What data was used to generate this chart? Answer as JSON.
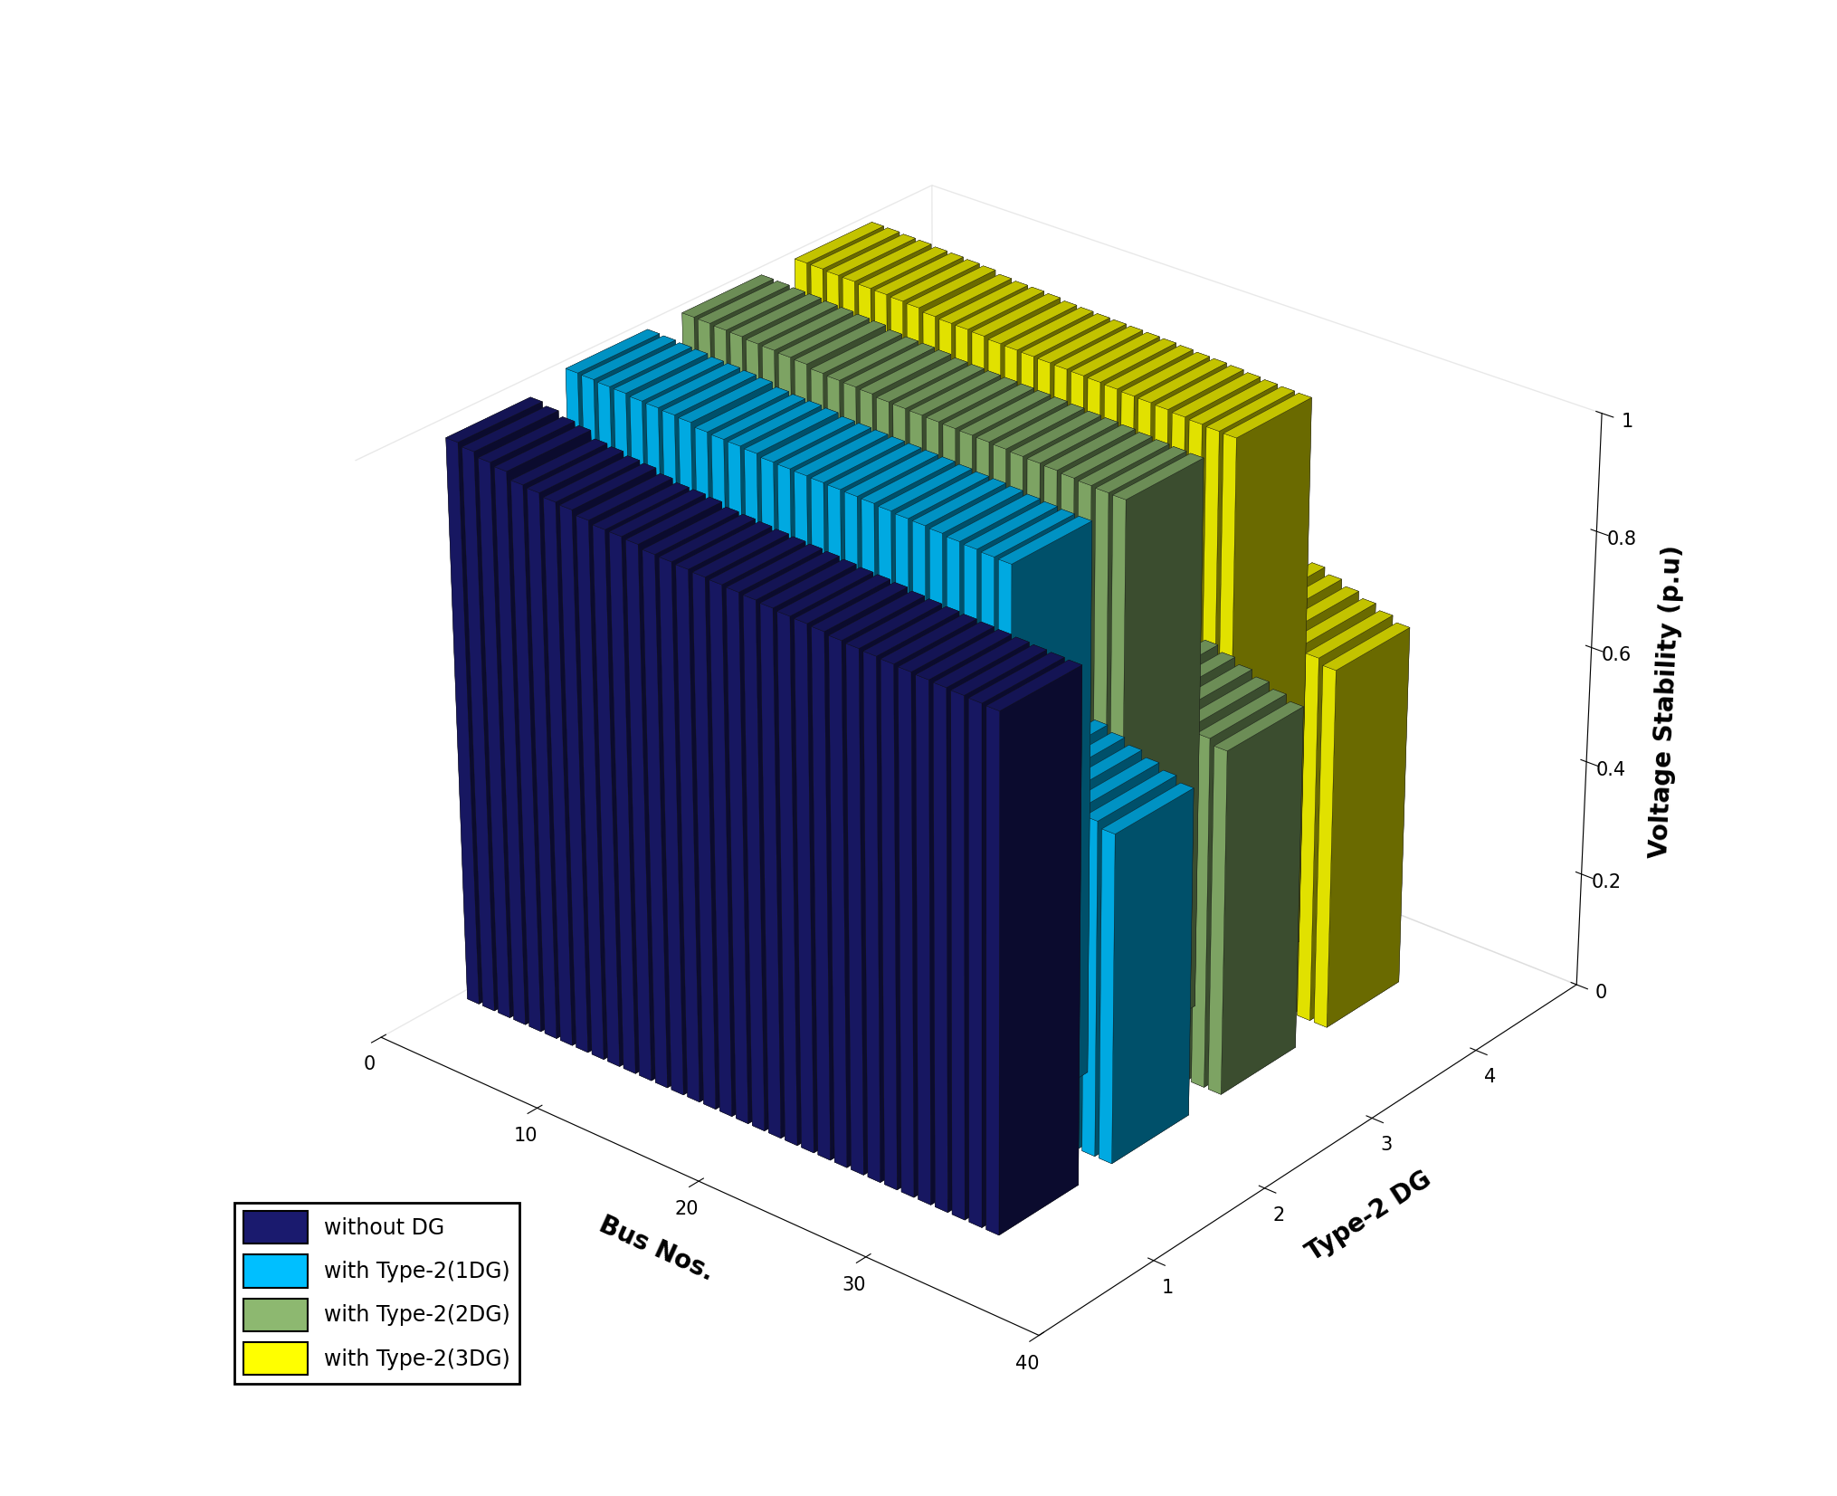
{
  "title": "",
  "xlabel": "Bus Nos.",
  "ylabel": "Type-2 DG",
  "zlabel": "Voltage Stability (p.u)",
  "n_buses": 33,
  "n_dg_types": 4,
  "dg_labels": [
    "without DG",
    "with Type-2(1DG)",
    "with Type-2(2DG)",
    "with Type-2(3DG)"
  ],
  "colors": [
    "#1a1a6e",
    "#00bfff",
    "#8db870",
    "#ffff00"
  ],
  "edge_color": "#111111",
  "voltage_without_dg": [
    0.9805,
    0.9754,
    0.9677,
    0.963,
    0.9509,
    0.9481,
    0.9432,
    0.9409,
    0.934,
    0.9292,
    0.9284,
    0.9261,
    0.92,
    0.9185,
    0.9168,
    0.9148,
    0.9131,
    0.9115,
    0.9098,
    0.9073,
    0.9048,
    0.9037,
    0.9017,
    0.898,
    0.896,
    0.8944,
    0.8928,
    0.8911,
    0.8895,
    0.888,
    0.8865,
    0.8851,
    0.8838
  ],
  "voltage_1dg": [
    1.0,
    0.999,
    0.997,
    0.996,
    0.993,
    0.992,
    0.99,
    0.988,
    0.982,
    0.98,
    0.979,
    0.977,
    0.973,
    0.972,
    0.971,
    0.97,
    0.969,
    0.968,
    0.967,
    0.965,
    0.963,
    0.962,
    0.96,
    0.957,
    0.955,
    0.953,
    0.952,
    0.62,
    0.61,
    0.6,
    0.59,
    0.58,
    0.57
  ],
  "voltage_2dg": [
    1.0,
    0.9992,
    0.9975,
    0.9965,
    0.994,
    0.993,
    0.991,
    0.9895,
    0.984,
    0.982,
    0.981,
    0.9795,
    0.976,
    0.975,
    0.974,
    0.973,
    0.972,
    0.971,
    0.97,
    0.9685,
    0.9665,
    0.9655,
    0.964,
    0.9615,
    0.9595,
    0.958,
    0.957,
    0.65,
    0.64,
    0.63,
    0.62,
    0.61,
    0.6
  ],
  "voltage_3dg": [
    1.0,
    0.9995,
    0.998,
    0.9972,
    0.995,
    0.9942,
    0.9925,
    0.991,
    0.986,
    0.984,
    0.9835,
    0.982,
    0.979,
    0.978,
    0.977,
    0.9762,
    0.9753,
    0.9744,
    0.9735,
    0.972,
    0.9702,
    0.9693,
    0.9678,
    0.9655,
    0.9635,
    0.962,
    0.961,
    0.68,
    0.67,
    0.66,
    0.65,
    0.64,
    0.63
  ],
  "background_color": "#ffffff",
  "elev": 28,
  "azim": -50
}
